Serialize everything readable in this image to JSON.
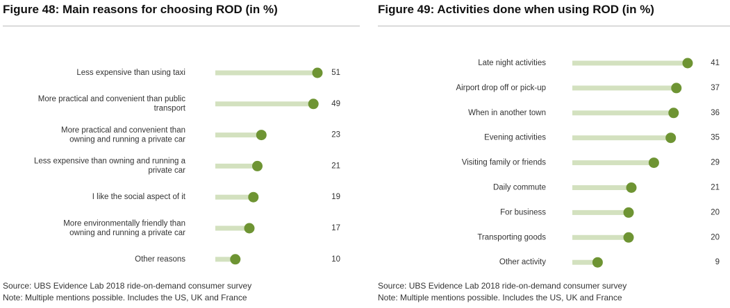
{
  "colors": {
    "dot": "#6e9433",
    "bar": "#d3e1bf"
  },
  "figures": [
    {
      "title": "Figure 48: Main reasons for choosing ROD (in %)",
      "source": "Source:  UBS Evidence Lab 2018 ride-on-demand consumer survey",
      "note": "Note: Multiple mentions possible. Includes the US, UK and France"
    },
    {
      "title": "Figure 49: Activities done when using ROD (in %)",
      "source": "Source:  UBS Evidence Lab 2018 ride-on-demand consumer survey",
      "note": "Note: Multiple mentions possible. Includes the US, UK and France"
    }
  ],
  "chart_data": [
    {
      "type": "bar",
      "style": "lollipop",
      "title": "Figure 48: Main reasons for choosing ROD (in %)",
      "xlabel": "",
      "ylabel": "",
      "xlim": [
        0,
        51
      ],
      "categories": [
        [
          "Less expensive than using taxi"
        ],
        [
          "More practical and convenient than public",
          "transport"
        ],
        [
          "More practical and convenient than",
          "owning and running a private car"
        ],
        [
          "Less expensive than owning and running a",
          "private car"
        ],
        [
          "I like the social aspect of it"
        ],
        [
          "More environmentally friendly than",
          "owning and running a private car"
        ],
        [
          "Other reasons"
        ]
      ],
      "values": [
        51,
        49,
        23,
        21,
        19,
        17,
        10
      ]
    },
    {
      "type": "bar",
      "style": "lollipop",
      "title": "Figure 49: Activities done when using ROD (in %)",
      "xlabel": "",
      "ylabel": "",
      "xlim": [
        0,
        41
      ],
      "categories": [
        [
          "Late night activities"
        ],
        [
          "Airport drop off or pick-up"
        ],
        [
          "When in another town"
        ],
        [
          "Evening activities"
        ],
        [
          "Visiting family or friends"
        ],
        [
          "Daily commute"
        ],
        [
          "For business"
        ],
        [
          "Transporting goods"
        ],
        [
          "Other activity"
        ]
      ],
      "values": [
        41,
        37,
        36,
        35,
        29,
        21,
        20,
        20,
        9
      ]
    }
  ]
}
